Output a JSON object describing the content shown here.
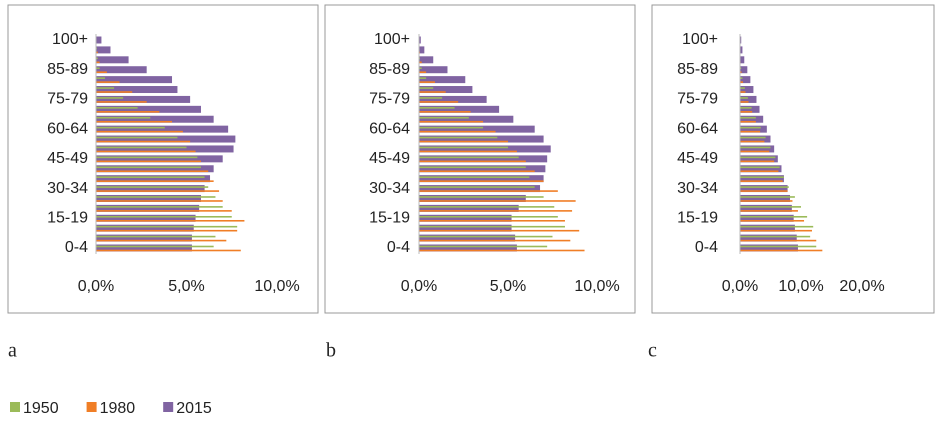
{
  "legend": [
    {
      "name": "1950",
      "color": "#9bbb59"
    },
    {
      "name": "1980",
      "color": "#f07e26"
    },
    {
      "name": "2015",
      "color": "#8064a2"
    }
  ],
  "chart_data": [
    {
      "type": "bar",
      "orientation": "horizontal",
      "label": "a",
      "categories": [
        "0-4",
        null,
        null,
        "15-19",
        null,
        null,
        "30-34",
        null,
        null,
        "45-49",
        null,
        null,
        "60-64",
        null,
        null,
        "75-79",
        null,
        null,
        "85-89",
        null,
        null,
        "100+"
      ],
      "series": [
        {
          "values": [
            6.5,
            6.6,
            7.8,
            7.5,
            7.0,
            6.6,
            6.2,
            6.0,
            5.8,
            5.6,
            5.0,
            4.5,
            3.8,
            3.0,
            2.3,
            1.5,
            1.0,
            0.5,
            0.2,
            0.1,
            0.05,
            0
          ]
        },
        {
          "values": [
            8.0,
            7.2,
            7.8,
            8.2,
            7.5,
            7.0,
            6.8,
            6.5,
            6.2,
            5.8,
            5.5,
            5.2,
            4.8,
            4.2,
            3.5,
            2.8,
            2.0,
            1.3,
            0.6,
            0.2,
            0.1,
            0
          ]
        },
        {
          "values": [
            5.3,
            5.3,
            5.4,
            5.5,
            5.7,
            5.8,
            6.0,
            6.3,
            6.5,
            7.0,
            7.6,
            7.7,
            7.3,
            6.5,
            5.8,
            5.2,
            4.5,
            4.2,
            2.8,
            1.8,
            0.8,
            0.3
          ]
        }
      ],
      "xlim": [
        0,
        10
      ],
      "xticks": [
        {
          "value": 0,
          "label": "0,0%"
        },
        {
          "value": 5,
          "label": "5,0%"
        },
        {
          "value": 10,
          "label": "10,0%"
        }
      ]
    },
    {
      "type": "bar",
      "orientation": "horizontal",
      "label": "b",
      "categories": [
        "0-4",
        null,
        null,
        "15-19",
        null,
        null,
        "30-34",
        null,
        null,
        "45-49",
        null,
        null,
        "60-64",
        null,
        null,
        "75-79",
        null,
        null,
        "85-89",
        null,
        null,
        "100+"
      ],
      "series": [
        {
          "values": [
            7.2,
            7.5,
            8.2,
            7.8,
            7.6,
            7.0,
            6.5,
            6.2,
            6.0,
            5.6,
            5.0,
            4.4,
            3.6,
            2.8,
            2.0,
            1.3,
            0.8,
            0.4,
            0.15,
            0.05,
            0,
            0
          ]
        },
        {
          "values": [
            9.3,
            8.5,
            9.0,
            8.2,
            8.6,
            8.8,
            7.8,
            7.0,
            6.5,
            6.0,
            5.5,
            5.0,
            4.3,
            3.6,
            2.9,
            2.2,
            1.5,
            0.9,
            0.4,
            0.15,
            0.05,
            0
          ]
        },
        {
          "values": [
            5.5,
            5.4,
            5.2,
            5.2,
            5.6,
            6.0,
            6.8,
            7.0,
            7.1,
            7.2,
            7.4,
            7.0,
            6.5,
            5.3,
            4.5,
            3.8,
            3.0,
            2.6,
            1.6,
            0.8,
            0.3,
            0.1
          ]
        }
      ],
      "xlim": [
        0,
        10
      ],
      "xticks": [
        {
          "value": 0,
          "label": "0,0%"
        },
        {
          "value": 5,
          "label": "5,0%"
        },
        {
          "value": 10,
          "label": "10,0%"
        }
      ]
    },
    {
      "type": "bar",
      "orientation": "horizontal",
      "label": "c",
      "categories": [
        "0-4",
        null,
        null,
        "15-19",
        null,
        null,
        "30-34",
        null,
        null,
        "45-49",
        null,
        null,
        "60-64",
        null,
        null,
        "75-79",
        null,
        null,
        "85-89",
        null,
        null,
        "100+"
      ],
      "series": [
        {
          "values": [
            12.5,
            11.5,
            12.0,
            11.0,
            10.0,
            9.0,
            8.0,
            7.2,
            6.5,
            5.8,
            5.0,
            4.2,
            3.4,
            2.6,
            1.9,
            1.3,
            0.8,
            0.4,
            0.2,
            0.05,
            0,
            0
          ]
        },
        {
          "values": [
            13.5,
            12.5,
            11.8,
            10.5,
            9.5,
            8.6,
            7.8,
            7.0,
            6.3,
            5.6,
            4.8,
            4.0,
            3.3,
            2.6,
            2.0,
            1.4,
            0.9,
            0.5,
            0.25,
            0.1,
            0,
            0
          ]
        },
        {
          "values": [
            9.5,
            9.3,
            9.0,
            8.8,
            8.5,
            8.2,
            7.8,
            7.2,
            6.8,
            6.2,
            5.6,
            5.0,
            4.4,
            3.8,
            3.2,
            2.7,
            2.2,
            1.7,
            1.2,
            0.7,
            0.4,
            0.2
          ]
        }
      ],
      "xlim": [
        0,
        20
      ],
      "xticks": [
        {
          "value": 0,
          "label": "0,0%"
        },
        {
          "value": 10,
          "label": "10,0%"
        },
        {
          "value": 20,
          "label": "20,0%"
        }
      ]
    }
  ]
}
